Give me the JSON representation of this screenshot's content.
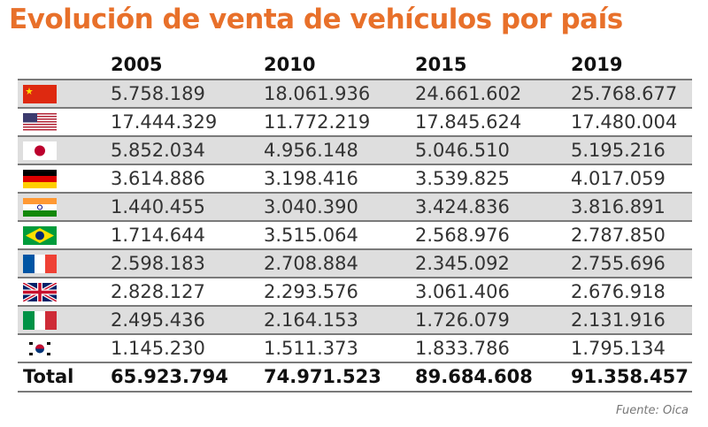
{
  "title": "Evolución de venta de vehículos por país",
  "source": "Fuente: Oica",
  "colors": {
    "title": "#e8702a",
    "alt_row": "#dedede",
    "rule": "#7a7a7a"
  },
  "chart_data": {
    "type": "table",
    "title": "Evolución de venta de vehículos por país",
    "columns": [
      "",
      "2005",
      "2010",
      "2015",
      "2019"
    ],
    "rows": [
      {
        "flag": "china-flag-icon",
        "values": [
          "5.758.189",
          "18.061.936",
          "24.661.602",
          "25.768.677"
        ]
      },
      {
        "flag": "usa-flag-icon",
        "values": [
          "17.444.329",
          "11.772.219",
          "17.845.624",
          "17.480.004"
        ]
      },
      {
        "flag": "japan-flag-icon",
        "values": [
          "5.852.034",
          "4.956.148",
          "5.046.510",
          "5.195.216"
        ]
      },
      {
        "flag": "germany-flag-icon",
        "values": [
          "3.614.886",
          "3.198.416",
          "3.539.825",
          "4.017.059"
        ]
      },
      {
        "flag": "india-flag-icon",
        "values": [
          "1.440.455",
          "3.040.390",
          "3.424.836",
          "3.816.891"
        ]
      },
      {
        "flag": "brazil-flag-icon",
        "values": [
          "1.714.644",
          "3.515.064",
          "2.568.976",
          "2.787.850"
        ]
      },
      {
        "flag": "france-flag-icon",
        "values": [
          "2.598.183",
          "2.708.884",
          "2.345.092",
          "2.755.696"
        ]
      },
      {
        "flag": "uk-flag-icon",
        "values": [
          "2.828.127",
          "2.293.576",
          "3.061.406",
          "2.676.918"
        ]
      },
      {
        "flag": "italy-flag-icon",
        "values": [
          "2.495.436",
          "2.164.153",
          "1.726.079",
          "2.131.916"
        ]
      },
      {
        "flag": "south-korea-flag-icon",
        "values": [
          "1.145.230",
          "1.511.373",
          "1.833.786",
          "1.795.134"
        ]
      }
    ],
    "total": {
      "label": "Total",
      "values": [
        "65.923.794",
        "74.971.523",
        "89.684.608",
        "91.358.457"
      ]
    },
    "source": "Fuente: Oica"
  }
}
